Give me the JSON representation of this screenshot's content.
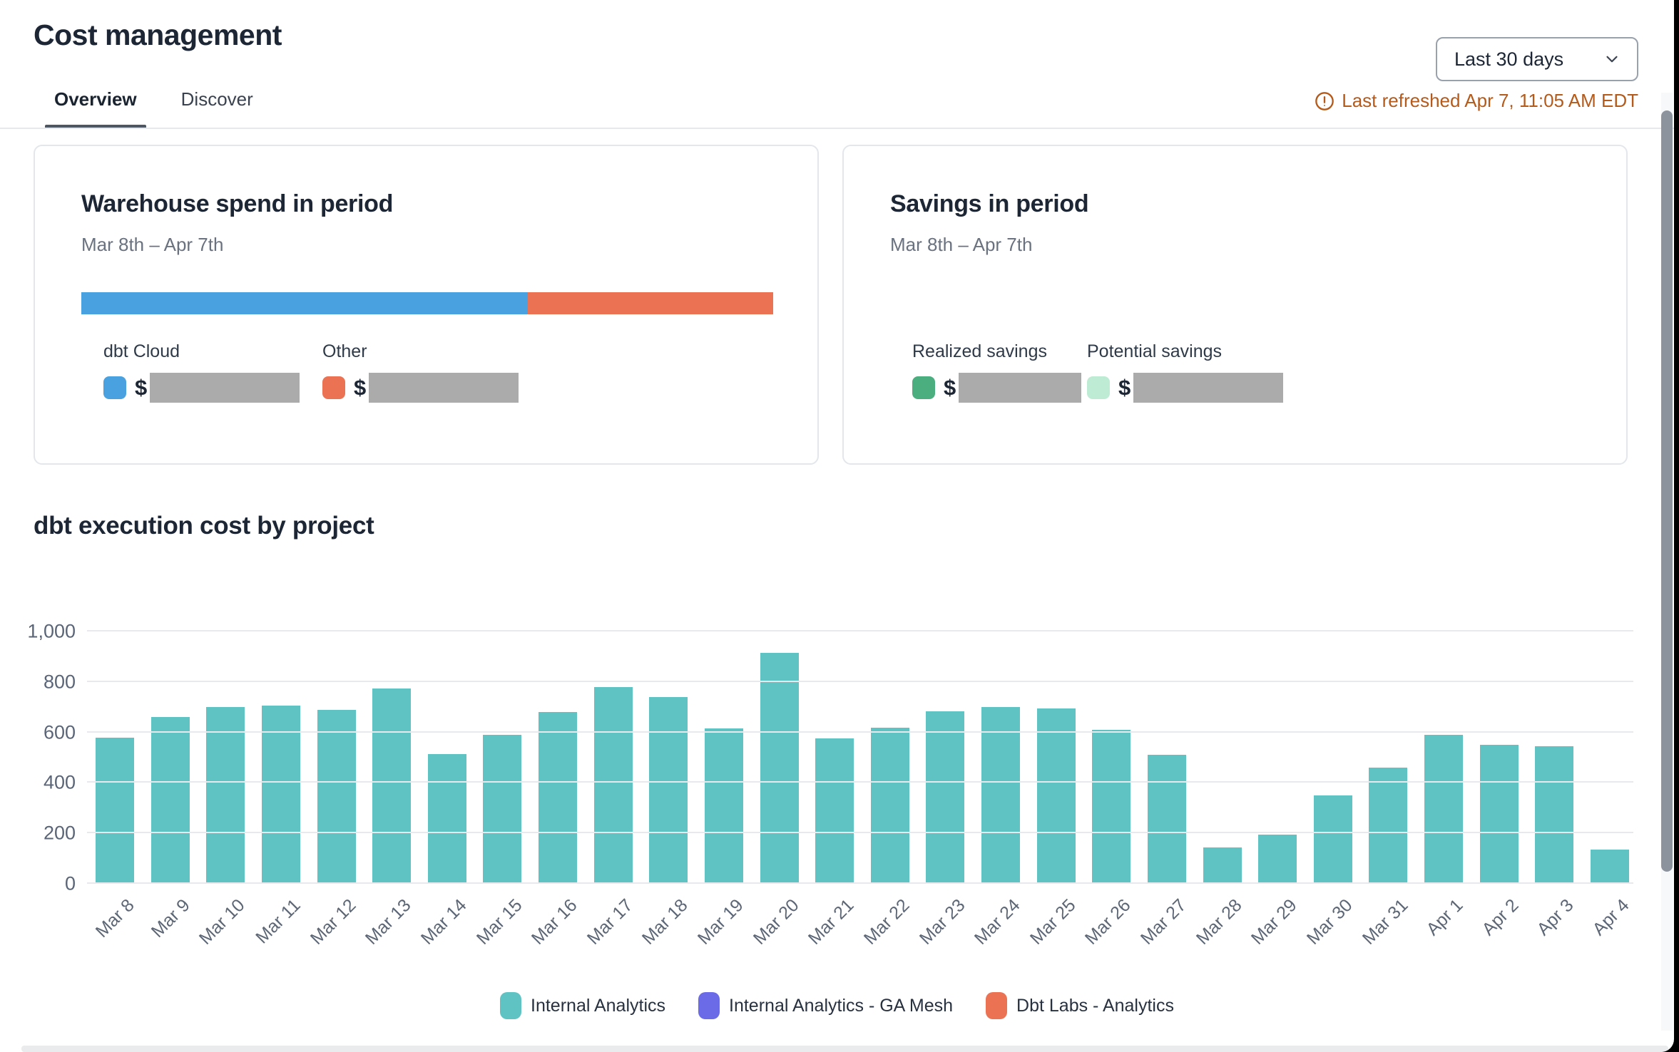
{
  "page": {
    "title": "Cost management"
  },
  "header": {
    "period_dropdown": {
      "value": "Last 30 days"
    },
    "refresh_notice": "Last refreshed Apr 7, 11:05 AM EDT"
  },
  "tabs": {
    "overview": "Overview",
    "discover": "Discover"
  },
  "warehouse_card": {
    "title": "Warehouse spend in period",
    "period": "Mar 8th – Apr 7th",
    "currency_symbol": "$",
    "segments": [
      {
        "label": "dbt Cloud",
        "color": "#4aa1df",
        "fraction": 0.645,
        "value_redacted": true
      },
      {
        "label": "Other",
        "color": "#ec7254",
        "fraction": 0.355,
        "value_redacted": true
      }
    ]
  },
  "savings_card": {
    "title": "Savings in period",
    "period": "Mar 8th – Apr 7th",
    "currency_symbol": "$",
    "items": [
      {
        "label": "Realized savings",
        "color": "#4bae7e",
        "value_redacted": true
      },
      {
        "label": "Potential savings",
        "color": "#bdebd3",
        "value_redacted": true
      }
    ]
  },
  "chart_section": {
    "title": "dbt execution cost by project"
  },
  "chart_data": {
    "type": "bar",
    "title": "dbt execution cost by project",
    "categories": [
      "Mar 8",
      "Mar 9",
      "Mar 10",
      "Mar 11",
      "Mar 12",
      "Mar 13",
      "Mar 14",
      "Mar 15",
      "Mar 16",
      "Mar 17",
      "Mar 18",
      "Mar 19",
      "Mar 20",
      "Mar 21",
      "Mar 22",
      "Mar 23",
      "Mar 24",
      "Mar 25",
      "Mar 26",
      "Mar 27",
      "Mar 28",
      "Mar 29",
      "Mar 30",
      "Mar 31",
      "Apr 1",
      "Apr 2",
      "Apr 3",
      "Apr 4"
    ],
    "series": [
      {
        "name": "Internal Analytics",
        "color": "#5fc3c3",
        "values": [
          580,
          660,
          700,
          705,
          690,
          775,
          515,
          590,
          680,
          780,
          740,
          615,
          915,
          575,
          620,
          685,
          700,
          695,
          610,
          510,
          145,
          195,
          350,
          460,
          590,
          550,
          545,
          135
        ]
      },
      {
        "name": "Internal Analytics - GA Mesh",
        "color": "#6b6be8",
        "values": [
          0,
          0,
          0,
          0,
          0,
          0,
          0,
          0,
          0,
          0,
          0,
          0,
          0,
          0,
          0,
          0,
          0,
          0,
          0,
          0,
          0,
          0,
          0,
          0,
          0,
          0,
          0,
          0
        ]
      },
      {
        "name": "Dbt Labs - Analytics",
        "color": "#ec7254",
        "values": [
          0,
          0,
          0,
          0,
          0,
          0,
          0,
          0,
          0,
          0,
          0,
          0,
          0,
          0,
          0,
          0,
          0,
          0,
          0,
          0,
          0,
          0,
          0,
          0,
          0,
          0,
          0,
          0
        ]
      }
    ],
    "xlabel": "",
    "ylabel": "",
    "ylim": [
      0,
      1000
    ],
    "yticks": [
      0,
      200,
      400,
      600,
      800,
      1000
    ],
    "ytick_labels": [
      "0",
      "200",
      "400",
      "600",
      "800",
      "1,000"
    ],
    "grid": true,
    "legend_position": "bottom"
  }
}
